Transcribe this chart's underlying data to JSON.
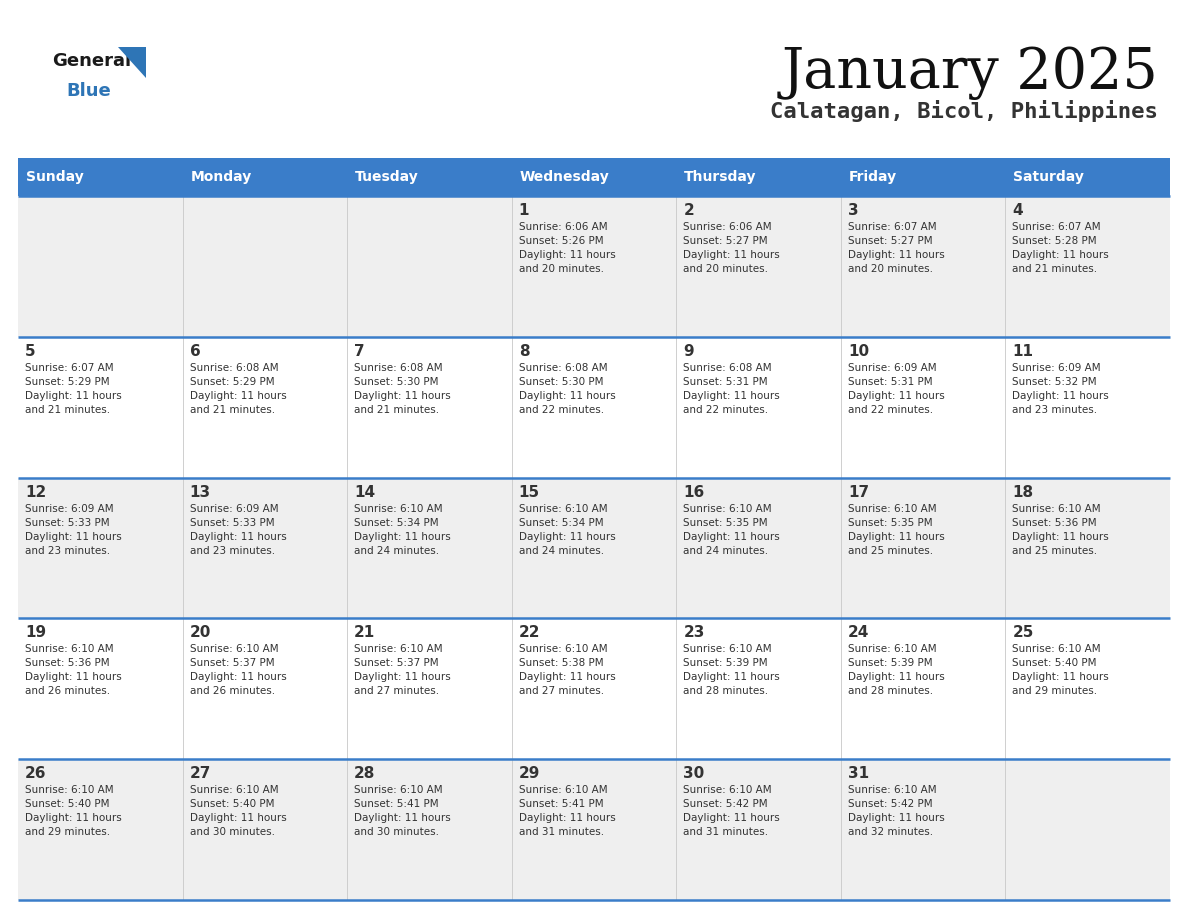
{
  "title": "January 2025",
  "subtitle": "Calatagan, Bicol, Philippines",
  "days_of_week": [
    "Sunday",
    "Monday",
    "Tuesday",
    "Wednesday",
    "Thursday",
    "Friday",
    "Saturday"
  ],
  "header_bg": "#3A7DC9",
  "header_text": "#FFFFFF",
  "row_bg_odd": "#EFEFEF",
  "row_bg_even": "#FFFFFF",
  "cell_text": "#333333",
  "day_number_color": "#333333",
  "divider_color": "#3A7DC9",
  "title_color": "#111111",
  "subtitle_color": "#333333",
  "calendar_data": [
    [
      {
        "day": 0,
        "info": ""
      },
      {
        "day": 0,
        "info": ""
      },
      {
        "day": 0,
        "info": ""
      },
      {
        "day": 1,
        "info": "Sunrise: 6:06 AM\nSunset: 5:26 PM\nDaylight: 11 hours\nand 20 minutes."
      },
      {
        "day": 2,
        "info": "Sunrise: 6:06 AM\nSunset: 5:27 PM\nDaylight: 11 hours\nand 20 minutes."
      },
      {
        "day": 3,
        "info": "Sunrise: 6:07 AM\nSunset: 5:27 PM\nDaylight: 11 hours\nand 20 minutes."
      },
      {
        "day": 4,
        "info": "Sunrise: 6:07 AM\nSunset: 5:28 PM\nDaylight: 11 hours\nand 21 minutes."
      }
    ],
    [
      {
        "day": 5,
        "info": "Sunrise: 6:07 AM\nSunset: 5:29 PM\nDaylight: 11 hours\nand 21 minutes."
      },
      {
        "day": 6,
        "info": "Sunrise: 6:08 AM\nSunset: 5:29 PM\nDaylight: 11 hours\nand 21 minutes."
      },
      {
        "day": 7,
        "info": "Sunrise: 6:08 AM\nSunset: 5:30 PM\nDaylight: 11 hours\nand 21 minutes."
      },
      {
        "day": 8,
        "info": "Sunrise: 6:08 AM\nSunset: 5:30 PM\nDaylight: 11 hours\nand 22 minutes."
      },
      {
        "day": 9,
        "info": "Sunrise: 6:08 AM\nSunset: 5:31 PM\nDaylight: 11 hours\nand 22 minutes."
      },
      {
        "day": 10,
        "info": "Sunrise: 6:09 AM\nSunset: 5:31 PM\nDaylight: 11 hours\nand 22 minutes."
      },
      {
        "day": 11,
        "info": "Sunrise: 6:09 AM\nSunset: 5:32 PM\nDaylight: 11 hours\nand 23 minutes."
      }
    ],
    [
      {
        "day": 12,
        "info": "Sunrise: 6:09 AM\nSunset: 5:33 PM\nDaylight: 11 hours\nand 23 minutes."
      },
      {
        "day": 13,
        "info": "Sunrise: 6:09 AM\nSunset: 5:33 PM\nDaylight: 11 hours\nand 23 minutes."
      },
      {
        "day": 14,
        "info": "Sunrise: 6:10 AM\nSunset: 5:34 PM\nDaylight: 11 hours\nand 24 minutes."
      },
      {
        "day": 15,
        "info": "Sunrise: 6:10 AM\nSunset: 5:34 PM\nDaylight: 11 hours\nand 24 minutes."
      },
      {
        "day": 16,
        "info": "Sunrise: 6:10 AM\nSunset: 5:35 PM\nDaylight: 11 hours\nand 24 minutes."
      },
      {
        "day": 17,
        "info": "Sunrise: 6:10 AM\nSunset: 5:35 PM\nDaylight: 11 hours\nand 25 minutes."
      },
      {
        "day": 18,
        "info": "Sunrise: 6:10 AM\nSunset: 5:36 PM\nDaylight: 11 hours\nand 25 minutes."
      }
    ],
    [
      {
        "day": 19,
        "info": "Sunrise: 6:10 AM\nSunset: 5:36 PM\nDaylight: 11 hours\nand 26 minutes."
      },
      {
        "day": 20,
        "info": "Sunrise: 6:10 AM\nSunset: 5:37 PM\nDaylight: 11 hours\nand 26 minutes."
      },
      {
        "day": 21,
        "info": "Sunrise: 6:10 AM\nSunset: 5:37 PM\nDaylight: 11 hours\nand 27 minutes."
      },
      {
        "day": 22,
        "info": "Sunrise: 6:10 AM\nSunset: 5:38 PM\nDaylight: 11 hours\nand 27 minutes."
      },
      {
        "day": 23,
        "info": "Sunrise: 6:10 AM\nSunset: 5:39 PM\nDaylight: 11 hours\nand 28 minutes."
      },
      {
        "day": 24,
        "info": "Sunrise: 6:10 AM\nSunset: 5:39 PM\nDaylight: 11 hours\nand 28 minutes."
      },
      {
        "day": 25,
        "info": "Sunrise: 6:10 AM\nSunset: 5:40 PM\nDaylight: 11 hours\nand 29 minutes."
      }
    ],
    [
      {
        "day": 26,
        "info": "Sunrise: 6:10 AM\nSunset: 5:40 PM\nDaylight: 11 hours\nand 29 minutes."
      },
      {
        "day": 27,
        "info": "Sunrise: 6:10 AM\nSunset: 5:40 PM\nDaylight: 11 hours\nand 30 minutes."
      },
      {
        "day": 28,
        "info": "Sunrise: 6:10 AM\nSunset: 5:41 PM\nDaylight: 11 hours\nand 30 minutes."
      },
      {
        "day": 29,
        "info": "Sunrise: 6:10 AM\nSunset: 5:41 PM\nDaylight: 11 hours\nand 31 minutes."
      },
      {
        "day": 30,
        "info": "Sunrise: 6:10 AM\nSunset: 5:42 PM\nDaylight: 11 hours\nand 31 minutes."
      },
      {
        "day": 31,
        "info": "Sunrise: 6:10 AM\nSunset: 5:42 PM\nDaylight: 11 hours\nand 32 minutes."
      },
      {
        "day": 0,
        "info": ""
      }
    ]
  ],
  "logo_general_color": "#1a1a1a",
  "logo_blue_color": "#2E75B6",
  "fig_width": 11.88,
  "fig_height": 9.18,
  "dpi": 100
}
